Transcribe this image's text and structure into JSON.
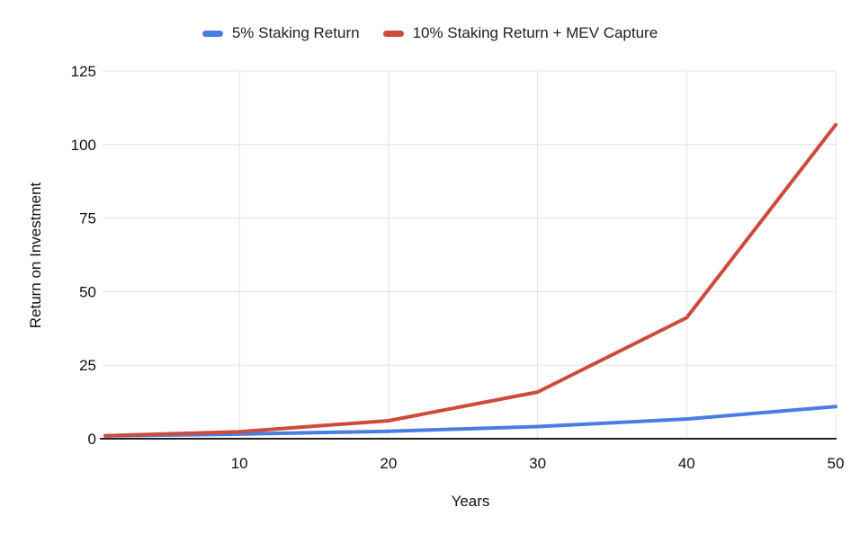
{
  "legend": {
    "items": [
      {
        "label": "5% Staking Return",
        "color": "#4a7de2"
      },
      {
        "label": "10% Staking Return + MEV Capture",
        "color": "#cc4b3c"
      }
    ]
  },
  "chart_data": {
    "type": "line",
    "title": "",
    "xlabel": "Years",
    "ylabel": "Return on Investment",
    "x": [
      1,
      10,
      20,
      30,
      40,
      50
    ],
    "series": [
      {
        "name": "5% Staking Return",
        "color": "#4a7de2",
        "values": [
          1.0,
          1.55,
          2.53,
          4.12,
          6.7,
          10.92
        ]
      },
      {
        "name": "10% Staking Return + MEV Capture",
        "color": "#cc4b3c",
        "values": [
          1.0,
          2.36,
          6.12,
          15.86,
          41.14,
          106.72
        ]
      }
    ],
    "xlim": [
      1,
      50
    ],
    "ylim": [
      0,
      125
    ],
    "x_ticks": [
      10,
      20,
      30,
      40,
      50
    ],
    "y_ticks": [
      0,
      25,
      50,
      75,
      100,
      125
    ],
    "grid": true,
    "legend_position": "top",
    "colors": {
      "grid": "#e3e3e3",
      "axis": "#212121",
      "tick_text": "#111111",
      "background": "#ffffff"
    }
  }
}
